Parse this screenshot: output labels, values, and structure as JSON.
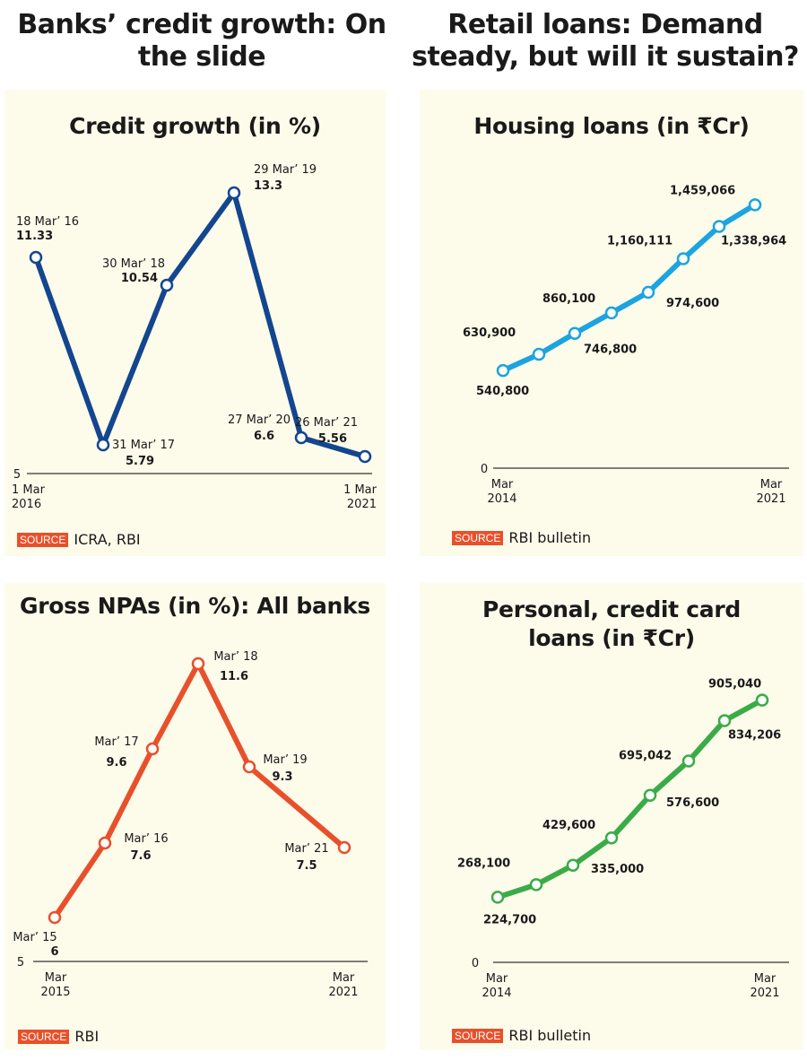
{
  "headlines": {
    "left": "Banks’ credit growth: On the slide",
    "right": "Retail loans: Demand steady, but will it sustain?"
  },
  "source_tag": "SOURCE",
  "colors": {
    "panel_bg": "#fdfbea",
    "credit_line": "#13468f",
    "npa_line": "#e8502b",
    "housing_line": "#1ba4e0",
    "personal_line": "#3aac47",
    "source_tag": "#e8502b"
  },
  "chart_data": [
    {
      "id": "credit",
      "type": "line",
      "title": "Credit growth (in %)",
      "source": "ICRA, RBI",
      "y_baseline_label": "5",
      "ylim": [
        5,
        14
      ],
      "x_start_label": [
        "1 Mar",
        "2016"
      ],
      "x_end_label": [
        "1 Mar",
        "2021"
      ],
      "points": [
        {
          "date": "18 Mar’ 16",
          "value": 11.33,
          "value_label": "11.33"
        },
        {
          "date": "31 Mar’ 17",
          "value": 5.79,
          "value_label": "5.79"
        },
        {
          "date": "30 Mar’ 18",
          "value": 10.54,
          "value_label": "10.54"
        },
        {
          "date": "29 Mar’ 19",
          "value": 13.3,
          "value_label": "13.3"
        },
        {
          "date": "27 Mar’ 20",
          "value": 6.6,
          "value_label": "6.6"
        },
        {
          "date": "26 Mar’ 21",
          "value": 5.56,
          "value_label": "5.56"
        }
      ]
    },
    {
      "id": "housing",
      "type": "line",
      "title": "Housing loans (in ₹Cr)",
      "source": "RBI bulletin",
      "y_baseline_label": "0",
      "ylim": [
        0,
        1600000
      ],
      "x_start_label": [
        "Mar",
        "2014"
      ],
      "x_end_label": [
        "Mar",
        "2021"
      ],
      "points": [
        {
          "value": 540800,
          "value_label": "540,800"
        },
        {
          "value": 630900,
          "value_label": "630,900"
        },
        {
          "value": 746800,
          "value_label": "746,800"
        },
        {
          "value": 860100,
          "value_label": "860,100"
        },
        {
          "value": 974600,
          "value_label": "974,600"
        },
        {
          "value": 1160111,
          "value_label": "1,160,111"
        },
        {
          "value": 1338964,
          "value_label": "1,338,964"
        },
        {
          "value": 1459066,
          "value_label": "1,459,066"
        }
      ]
    },
    {
      "id": "npa",
      "type": "line",
      "title": "Gross NPAs (in %): All banks",
      "source": "RBI",
      "y_baseline_label": "5",
      "ylim": [
        5,
        12
      ],
      "x_start_label": [
        "Mar",
        "2015"
      ],
      "x_end_label": [
        "Mar",
        "2021"
      ],
      "points": [
        {
          "date": "Mar’ 15",
          "value": 6,
          "value_label": "6"
        },
        {
          "date": "Mar’ 16",
          "value": 7.6,
          "value_label": "7.6"
        },
        {
          "date": "Mar’ 17",
          "value": 9.6,
          "value_label": "9.6"
        },
        {
          "date": "Mar’ 18",
          "value": 11.6,
          "value_label": "11.6"
        },
        {
          "date": "Mar’ 19",
          "value": 9.3,
          "value_label": "9.3"
        },
        {
          "date": "Mar’ 21",
          "value": 7.5,
          "value_label": "7.5"
        }
      ]
    },
    {
      "id": "personal",
      "type": "line",
      "title": "Personal, credit card loans (in ₹Cr)",
      "source": "RBI bulletin",
      "y_baseline_label": "0",
      "ylim": [
        0,
        1000000
      ],
      "x_start_label": [
        "Mar",
        "2014"
      ],
      "x_end_label": [
        "Mar",
        "2021"
      ],
      "points": [
        {
          "value": 224700,
          "value_label": "224,700"
        },
        {
          "value": 268100,
          "value_label": "268,100"
        },
        {
          "value": 335000,
          "value_label": "335,000"
        },
        {
          "value": 429600,
          "value_label": "429,600"
        },
        {
          "value": 576600,
          "value_label": "576,600"
        },
        {
          "value": 695042,
          "value_label": "695,042"
        },
        {
          "value": 834206,
          "value_label": "834,206"
        },
        {
          "value": 905040,
          "value_label": "905,040"
        }
      ]
    }
  ]
}
